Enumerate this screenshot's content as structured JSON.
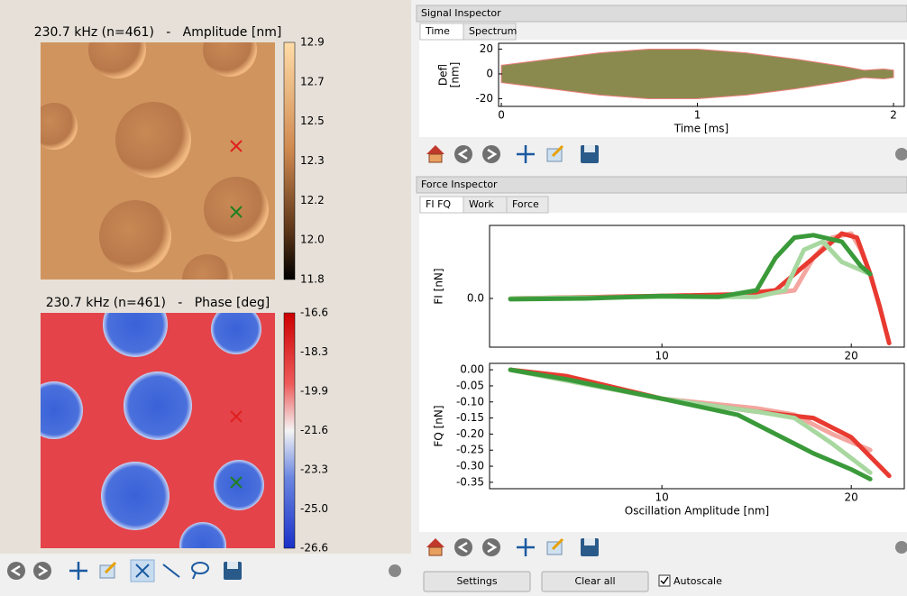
{
  "amplitude_map": {
    "title": "230.7 kHz (n=461)   -   Amplitude [nm]",
    "colorbar_labels": [
      "12.9",
      "12.7",
      "12.5",
      "12.3",
      "12.2",
      "12.0",
      "11.8"
    ]
  },
  "phase_map": {
    "title": "230.7 kHz (n=461)   -   Phase [deg]",
    "colorbar_labels": [
      "-16.6",
      "-18.3",
      "-19.9",
      "-21.6",
      "-23.3",
      "-25.0",
      "-26.6"
    ]
  },
  "signal_inspector": {
    "title": "Signal Inspector",
    "tabs": [
      "Time",
      "Spectrum"
    ],
    "plot": {
      "type": "area",
      "ylabel": [
        "Defl",
        "[nm]"
      ],
      "xlabel": "Time [ms]",
      "xlim": [
        -0.014,
        2.055
      ],
      "ylim": [
        -26.2,
        24.7
      ],
      "xticks": [
        0,
        1,
        2
      ],
      "yticks": [
        20,
        0,
        -20
      ],
      "color": "#8a8a4e",
      "edge_color": "#f08080",
      "x": [
        0,
        0.25,
        0.5,
        0.75,
        1,
        1.25,
        1.5,
        1.75,
        1.85,
        1.95,
        2.0
      ],
      "upper": [
        7,
        12,
        17,
        20,
        20,
        17,
        12,
        6,
        3,
        4,
        3
      ],
      "lower": [
        -7,
        -12,
        -17,
        -20,
        -20,
        -17,
        -12,
        -6,
        -3,
        -4,
        -3
      ]
    }
  },
  "force_inspector": {
    "title": "Force Inspector",
    "tabs": [
      "FI FQ",
      "Work",
      "Force"
    ],
    "fi_plot": {
      "type": "line",
      "ylabel": "FI [nN]",
      "xlim": [
        0.9,
        22.8
      ],
      "ylim": [
        -0.6,
        0.9
      ],
      "xticks": [
        10,
        20
      ],
      "yticks": [
        {
          "value": 0,
          "label": "0.0"
        }
      ],
      "series": [
        {
          "color": "#f4a6a0",
          "x": [
            2,
            10,
            15,
            17,
            18,
            19,
            20,
            20.5,
            21
          ],
          "values": [
            0,
            0.03,
            0.04,
            0.1,
            0.5,
            0.75,
            0.8,
            0.6,
            0.3
          ]
        },
        {
          "color": "#e83a30",
          "x": [
            2,
            5,
            10,
            14,
            16,
            18,
            19.5,
            20.3,
            21,
            21.5,
            22
          ],
          "values": [
            0,
            0.01,
            0.03,
            0.05,
            0.1,
            0.5,
            0.8,
            0.75,
            0.3,
            -0.1,
            -0.55
          ]
        },
        {
          "color": "#a8d8a0",
          "x": [
            2,
            10,
            15,
            16.5,
            17.5,
            18.5,
            19.5,
            21
          ],
          "values": [
            0,
            0.02,
            0.02,
            0.1,
            0.6,
            0.7,
            0.45,
            0.3
          ]
        },
        {
          "color": "#3a9a3a",
          "x": [
            2,
            6,
            10,
            13,
            15,
            16,
            17,
            18,
            19.5,
            20.5,
            21
          ],
          "values": [
            -0.01,
            0,
            0.03,
            0.02,
            0.1,
            0.5,
            0.75,
            0.78,
            0.7,
            0.4,
            0.3
          ]
        }
      ]
    },
    "fq_plot": {
      "type": "line",
      "ylabel": "FQ [nN]",
      "xlabel": "Oscillation Amplitude [nm]",
      "xlim": [
        0.9,
        22.8
      ],
      "ylim": [
        -0.37,
        0.02
      ],
      "xticks": [
        10,
        20
      ],
      "yticks": [
        {
          "value": 0,
          "label": "0.00"
        },
        {
          "value": -0.05,
          "label": "-0.05"
        },
        {
          "value": -0.1,
          "label": "-0.10"
        },
        {
          "value": -0.15,
          "label": "-0.15"
        },
        {
          "value": -0.2,
          "label": "-0.20"
        },
        {
          "value": -0.25,
          "label": "-0.25"
        },
        {
          "value": -0.3,
          "label": "-0.30"
        },
        {
          "value": -0.35,
          "label": "-0.35"
        }
      ],
      "series": [
        {
          "color": "#f4a6a0",
          "x": [
            2,
            10,
            15,
            17,
            19,
            21
          ],
          "values": [
            0,
            -0.09,
            -0.12,
            -0.14,
            -0.2,
            -0.25
          ]
        },
        {
          "color": "#e83a30",
          "x": [
            2,
            5,
            10,
            15,
            18,
            20,
            21.5,
            22
          ],
          "values": [
            0,
            -0.02,
            -0.09,
            -0.13,
            -0.15,
            -0.21,
            -0.3,
            -0.33
          ]
        },
        {
          "color": "#a8d8a0",
          "x": [
            2,
            10,
            15,
            17,
            19,
            21
          ],
          "values": [
            0,
            -0.09,
            -0.13,
            -0.15,
            -0.23,
            -0.32
          ]
        },
        {
          "color": "#3a9a3a",
          "x": [
            2,
            5,
            10,
            14,
            16,
            18,
            20,
            21
          ],
          "values": [
            0,
            -0.03,
            -0.09,
            -0.14,
            -0.2,
            -0.26,
            -0.31,
            -0.34
          ]
        }
      ]
    }
  },
  "controls": {
    "settings": "Settings",
    "clear_all": "Clear all",
    "autoscale": "Autoscale"
  }
}
